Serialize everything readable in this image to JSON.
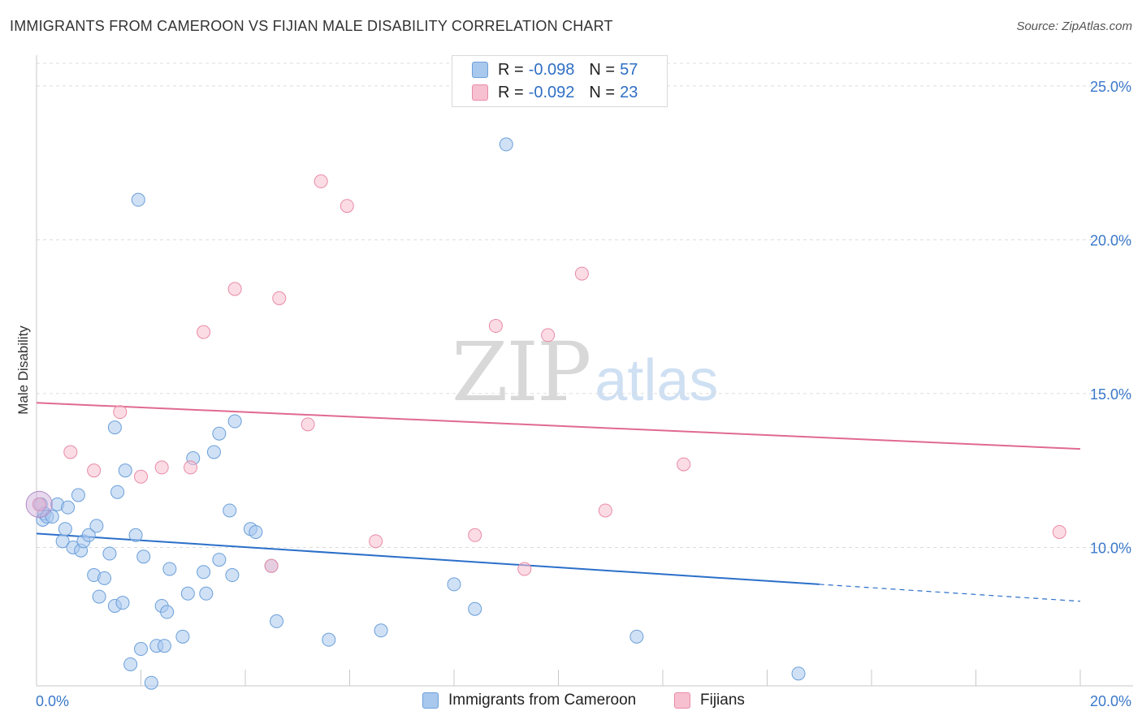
{
  "header": {
    "title": "IMMIGRANTS FROM CAMEROON VS FIJIAN MALE DISABILITY CORRELATION CHART",
    "source": "Source: ZipAtlas.com"
  },
  "watermark": {
    "zip": "ZIP",
    "atlas": "atlas"
  },
  "legend_top": [
    {
      "r_label": "R = ",
      "r_value": "-0.098",
      "n_label": "N = ",
      "n_value": "57",
      "color": "#a9c8ee",
      "border": "#6b9fd9"
    },
    {
      "r_label": "R = ",
      "r_value": "-0.092",
      "n_label": "N = ",
      "n_value": "23",
      "color": "#f7c0d0",
      "border": "#e88aa6"
    }
  ],
  "legend_bottom": [
    {
      "label": "Immigrants from Cameroon",
      "color": "#a9c8ee",
      "border": "#6b9fd9"
    },
    {
      "label": "Fijians",
      "color": "#f7c0d0",
      "border": "#e88aa6"
    }
  ],
  "chart_data": {
    "type": "scatter",
    "title": "IMMIGRANTS FROM CAMEROON VS FIJIAN MALE DISABILITY CORRELATION CHART",
    "xlabel": "",
    "ylabel": "Male Disability",
    "xlim": [
      0,
      20
    ],
    "ylim": [
      5.5,
      26
    ],
    "x_ticks": [
      {
        "value": 0,
        "label": "0.0%"
      },
      {
        "value": 20,
        "label": "20.0%"
      }
    ],
    "y_ticks": [
      {
        "value": 10,
        "label": "10.0%"
      },
      {
        "value": 15,
        "label": "15.0%"
      },
      {
        "value": 20,
        "label": "20.0%"
      },
      {
        "value": 25,
        "label": "25.0%"
      }
    ],
    "grid": true,
    "legend_position": "top-center",
    "series": [
      {
        "name": "Immigrants from Cameroon",
        "color": "#6b9fd9",
        "fill": "#a9c8ee",
        "trend": {
          "x0": 0,
          "y0": 10.45,
          "x1": 15,
          "y1": 8.8,
          "x_dash_end": 20,
          "y_dash_end": 8.25,
          "color": "#2b6fc9"
        },
        "points": [
          [
            0.08,
            11.4
          ],
          [
            0.12,
            10.9
          ],
          [
            0.15,
            11.1
          ],
          [
            0.2,
            11.0
          ],
          [
            0.3,
            11.0
          ],
          [
            0.4,
            11.4
          ],
          [
            0.5,
            10.2
          ],
          [
            0.55,
            10.6
          ],
          [
            0.6,
            11.3
          ],
          [
            0.7,
            10.0
          ],
          [
            0.8,
            11.7
          ],
          [
            0.85,
            9.9
          ],
          [
            0.9,
            10.2
          ],
          [
            1.0,
            10.4
          ],
          [
            1.1,
            9.1
          ],
          [
            1.15,
            10.7
          ],
          [
            1.2,
            8.4
          ],
          [
            1.3,
            9.0
          ],
          [
            1.4,
            9.8
          ],
          [
            1.5,
            8.1
          ],
          [
            1.5,
            13.9
          ],
          [
            1.55,
            11.8
          ],
          [
            1.65,
            8.2
          ],
          [
            1.7,
            12.5
          ],
          [
            1.8,
            6.2
          ],
          [
            1.9,
            10.4
          ],
          [
            1.95,
            21.3
          ],
          [
            2.0,
            6.7
          ],
          [
            2.05,
            9.7
          ],
          [
            2.2,
            5.6
          ],
          [
            2.3,
            6.8
          ],
          [
            2.4,
            8.1
          ],
          [
            2.45,
            6.8
          ],
          [
            2.5,
            7.9
          ],
          [
            2.55,
            9.3
          ],
          [
            2.8,
            7.1
          ],
          [
            2.9,
            8.5
          ],
          [
            3.0,
            12.9
          ],
          [
            3.2,
            9.2
          ],
          [
            3.25,
            8.5
          ],
          [
            3.4,
            13.1
          ],
          [
            3.5,
            9.6
          ],
          [
            3.5,
            13.7
          ],
          [
            3.7,
            11.2
          ],
          [
            3.75,
            9.1
          ],
          [
            3.8,
            14.1
          ],
          [
            4.1,
            10.6
          ],
          [
            4.2,
            10.5
          ],
          [
            4.5,
            9.4
          ],
          [
            4.6,
            7.6
          ],
          [
            5.6,
            7.0
          ],
          [
            6.6,
            7.3
          ],
          [
            8.0,
            8.8
          ],
          [
            8.4,
            8.0
          ],
          [
            9.0,
            23.1
          ],
          [
            11.5,
            7.1
          ],
          [
            14.6,
            5.9
          ]
        ]
      },
      {
        "name": "Fijians",
        "color": "#e88aa6",
        "fill": "#f7c0d0",
        "trend": {
          "x0": 0,
          "y0": 14.7,
          "x1": 20,
          "y1": 13.2,
          "color": "#e06a90"
        },
        "points": [
          [
            0.05,
            11.4
          ],
          [
            0.65,
            13.1
          ],
          [
            1.1,
            12.5
          ],
          [
            1.6,
            14.4
          ],
          [
            2.0,
            12.3
          ],
          [
            2.4,
            12.6
          ],
          [
            2.95,
            12.6
          ],
          [
            3.2,
            17.0
          ],
          [
            3.8,
            18.4
          ],
          [
            4.5,
            9.4
          ],
          [
            4.65,
            18.1
          ],
          [
            5.2,
            14.0
          ],
          [
            5.45,
            21.9
          ],
          [
            5.95,
            21.1
          ],
          [
            6.5,
            10.2
          ],
          [
            8.4,
            10.4
          ],
          [
            8.8,
            17.2
          ],
          [
            9.35,
            9.3
          ],
          [
            9.8,
            16.9
          ],
          [
            10.45,
            18.9
          ],
          [
            10.9,
            11.2
          ],
          [
            12.4,
            12.7
          ],
          [
            19.6,
            10.5
          ]
        ]
      }
    ]
  }
}
